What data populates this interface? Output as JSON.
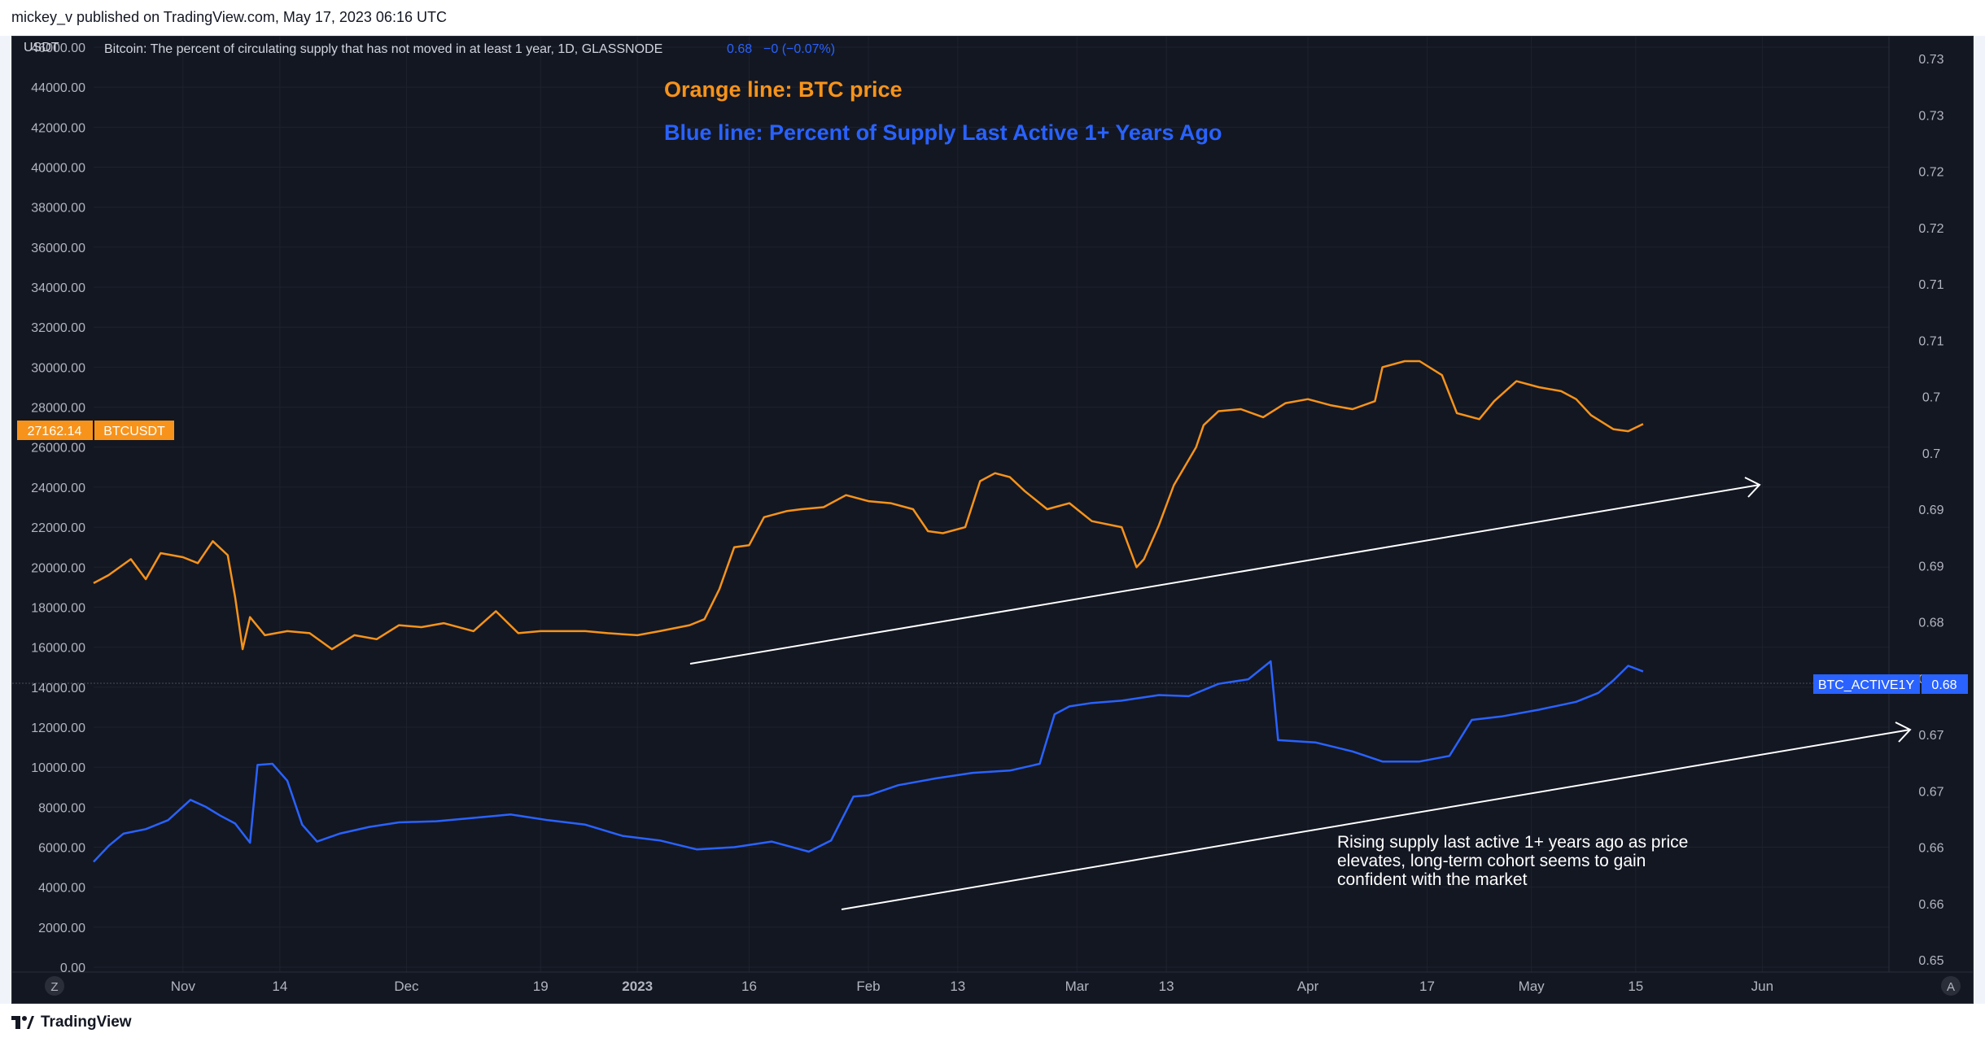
{
  "header": {
    "attribution": "mickey_v published on TradingView.com, May 17, 2023 06:16 UTC"
  },
  "legend": {
    "symbol_line": "Bitcoin: The percent of circulating supply that has not moved in at least 1 year, 1D, GLASSNODE",
    "value": "0.68",
    "change": "−0 (−0.07%)"
  },
  "left_axis": {
    "currency_label": "USDT",
    "ticks": [
      "0.00",
      "2000.00",
      "4000.00",
      "6000.00",
      "8000.00",
      "10000.00",
      "12000.00",
      "14000.00",
      "16000.00",
      "18000.00",
      "20000.00",
      "22000.00",
      "24000.00",
      "26000.00",
      "28000.00",
      "30000.00",
      "32000.00",
      "34000.00",
      "36000.00",
      "38000.00",
      "40000.00",
      "42000.00",
      "44000.00",
      "46000.00"
    ]
  },
  "right_axis": {
    "ticks": [
      "0.65",
      "0.66",
      "0.66",
      "0.67",
      "0.67",
      "0.68",
      "0.68",
      "0.69",
      "0.69",
      "0.7",
      "0.7",
      "0.71",
      "0.71",
      "0.72",
      "0.72",
      "0.73",
      "0.73"
    ]
  },
  "x_axis": {
    "ticks": [
      "Nov",
      "14",
      "Dec",
      "19",
      "2023",
      "16",
      "Feb",
      "13",
      "Mar",
      "13",
      "Apr",
      "17",
      "May",
      "15",
      "Jun"
    ],
    "left_button": "Z",
    "right_button": "A"
  },
  "labels": {
    "btc_price_tag": "27162.14",
    "btc_symbol_tag": "BTCUSDT",
    "active_symbol_tag": "BTC_ACTIVE1Y",
    "active_value_tag": "0.68"
  },
  "annotations": {
    "orange_note": "Orange line: BTC price",
    "blue_note": "Blue line: Percent of Supply Last Active 1+ Years Ago",
    "comment_line1": "Rising supply last active 1+ years ago as price",
    "comment_line2": "elevates, long-term cohort seems to gain",
    "comment_line3": "confident with the market"
  },
  "footer": {
    "brand": "TradingView"
  },
  "colors": {
    "background": "#131722",
    "btc_line": "#f7931a",
    "active_line": "#2962ff",
    "orange_text": "#f7931a",
    "blue_text": "#2962ff",
    "axis_text": "#b2b5be",
    "grid": "#1e222d"
  },
  "chart_data": {
    "type": "line",
    "xlabel": "",
    "ylabel": "",
    "x_range": [
      "2022-10-20",
      "2023-06-18"
    ],
    "ylim_left": [
      0,
      46000
    ],
    "ylim_right": [
      0.65,
      0.73
    ],
    "series": [
      {
        "name": "BTCUSDT",
        "axis": "left",
        "x": [
          "2022-10-20",
          "2022-10-22",
          "2022-10-25",
          "2022-10-27",
          "2022-10-29",
          "2022-11-01",
          "2022-11-03",
          "2022-11-05",
          "2022-11-07",
          "2022-11-08",
          "2022-11-09",
          "2022-11-10",
          "2022-11-12",
          "2022-11-15",
          "2022-11-18",
          "2022-11-21",
          "2022-11-24",
          "2022-11-27",
          "2022-11-30",
          "2022-12-03",
          "2022-12-06",
          "2022-12-10",
          "2022-12-13",
          "2022-12-16",
          "2022-12-19",
          "2022-12-22",
          "2022-12-25",
          "2022-12-28",
          "2023-01-01",
          "2023-01-04",
          "2023-01-08",
          "2023-01-10",
          "2023-01-12",
          "2023-01-14",
          "2023-01-16",
          "2023-01-18",
          "2023-01-21",
          "2023-01-23",
          "2023-01-26",
          "2023-01-29",
          "2023-02-01",
          "2023-02-04",
          "2023-02-07",
          "2023-02-09",
          "2023-02-11",
          "2023-02-14",
          "2023-02-16",
          "2023-02-18",
          "2023-02-20",
          "2023-02-22",
          "2023-02-25",
          "2023-02-28",
          "2023-03-03",
          "2023-03-07",
          "2023-03-09",
          "2023-03-10",
          "2023-03-12",
          "2023-03-14",
          "2023-03-17",
          "2023-03-18",
          "2023-03-20",
          "2023-03-23",
          "2023-03-26",
          "2023-03-29",
          "2023-04-01",
          "2023-04-04",
          "2023-04-07",
          "2023-04-10",
          "2023-04-11",
          "2023-04-14",
          "2023-04-16",
          "2023-04-19",
          "2023-04-21",
          "2023-04-24",
          "2023-04-26",
          "2023-04-29",
          "2023-05-02",
          "2023-05-05",
          "2023-05-07",
          "2023-05-09",
          "2023-05-12",
          "2023-05-14",
          "2023-05-16"
        ],
        "values": [
          19200,
          19600,
          20400,
          19400,
          20700,
          20500,
          20200,
          21300,
          20600,
          18500,
          15900,
          17500,
          16600,
          16800,
          16700,
          15900,
          16600,
          16400,
          17100,
          17000,
          17200,
          16800,
          17800,
          16700,
          16800,
          16800,
          16800,
          16700,
          16600,
          16800,
          17100,
          17400,
          18900,
          21000,
          21100,
          22500,
          22800,
          22900,
          23000,
          23600,
          23300,
          23200,
          22900,
          21800,
          21700,
          22000,
          24300,
          24700,
          24500,
          23800,
          22900,
          23200,
          22300,
          22000,
          20000,
          20400,
          22100,
          24100,
          26000,
          27100,
          27800,
          27900,
          27500,
          28200,
          28400,
          28100,
          27900,
          28300,
          30000,
          30300,
          30300,
          29600,
          27700,
          27400,
          28300,
          29300,
          29000,
          28800,
          28400,
          27600,
          26900,
          26800,
          27162
        ]
      },
      {
        "name": "BTC_ACTIVE1Y",
        "axis": "right",
        "x": [
          "2022-10-20",
          "2022-10-22",
          "2022-10-24",
          "2022-10-27",
          "2022-10-30",
          "2022-11-02",
          "2022-11-04",
          "2022-11-06",
          "2022-11-08",
          "2022-11-10",
          "2022-11-11",
          "2022-11-13",
          "2022-11-15",
          "2022-11-17",
          "2022-11-19",
          "2022-11-22",
          "2022-11-26",
          "2022-11-30",
          "2022-12-05",
          "2022-12-10",
          "2022-12-15",
          "2022-12-20",
          "2022-12-25",
          "2022-12-30",
          "2023-01-04",
          "2023-01-09",
          "2023-01-14",
          "2023-01-19",
          "2023-01-24",
          "2023-01-27",
          "2023-01-30",
          "2023-02-01",
          "2023-02-05",
          "2023-02-10",
          "2023-02-15",
          "2023-02-20",
          "2023-02-24",
          "2023-02-26",
          "2023-02-28",
          "2023-03-03",
          "2023-03-07",
          "2023-03-12",
          "2023-03-16",
          "2023-03-20",
          "2023-03-24",
          "2023-03-27",
          "2023-03-28",
          "2023-04-02",
          "2023-04-07",
          "2023-04-11",
          "2023-04-16",
          "2023-04-20",
          "2023-04-23",
          "2023-04-27",
          "2023-05-02",
          "2023-05-07",
          "2023-05-10",
          "2023-05-12",
          "2023-05-14",
          "2023-05-16"
        ],
        "values": [
          0.6587,
          0.6601,
          0.6612,
          0.6616,
          0.6624,
          0.6642,
          0.6636,
          0.6628,
          0.6621,
          0.6604,
          0.6673,
          0.6674,
          0.6659,
          0.662,
          0.6605,
          0.6612,
          0.6618,
          0.6622,
          0.6623,
          0.6626,
          0.6629,
          0.6624,
          0.662,
          0.661,
          0.6606,
          0.6598,
          0.66,
          0.6605,
          0.6596,
          0.6606,
          0.6645,
          0.6646,
          0.6655,
          0.6661,
          0.6666,
          0.6668,
          0.6674,
          0.6718,
          0.6725,
          0.6728,
          0.673,
          0.6735,
          0.6734,
          0.6745,
          0.6749,
          0.6765,
          0.6695,
          0.6693,
          0.6685,
          0.6676,
          0.6676,
          0.6681,
          0.6713,
          0.6716,
          0.6722,
          0.6729,
          0.6737,
          0.6748,
          0.6761,
          0.6756
        ]
      }
    ],
    "grid": true,
    "legend": "top-left"
  }
}
